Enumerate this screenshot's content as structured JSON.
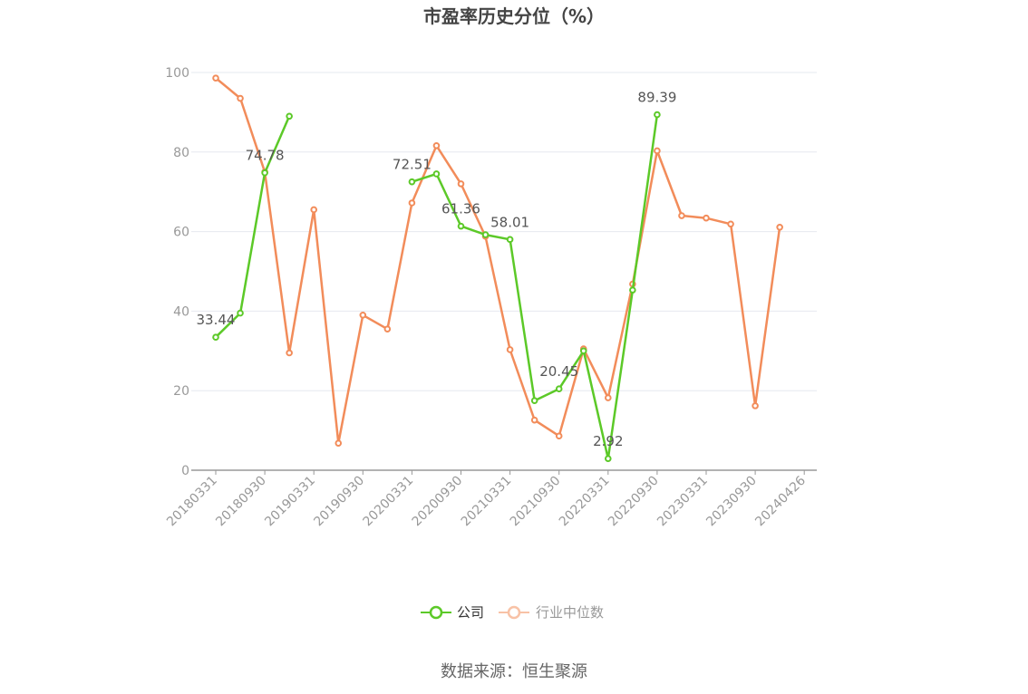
{
  "chart_data": {
    "type": "line",
    "title": "市盈率历史分位（%）",
    "xlabel": "",
    "ylabel": "",
    "ylim": [
      0,
      100
    ],
    "yticks": [
      0,
      20,
      40,
      60,
      80,
      100
    ],
    "x": [
      "20180331",
      "20180630",
      "20180930",
      "20181231",
      "20190331",
      "20190630",
      "20190930",
      "20191231",
      "20200331",
      "20200630",
      "20200930",
      "20201231",
      "20210331",
      "20210630",
      "20210930",
      "20211231",
      "20220331",
      "20220630",
      "20220930",
      "20221231",
      "20230331",
      "20230630",
      "20230930",
      "20231231",
      "20240426"
    ],
    "x_tick_labels": [
      "20180331",
      "20180930",
      "20190331",
      "20190930",
      "20200331",
      "20200930",
      "20210331",
      "20210930",
      "20220331",
      "20220930",
      "20230331",
      "20230930",
      "20240426"
    ],
    "grid": true,
    "legend_position": "bottom",
    "series": [
      {
        "name": "公司",
        "color": "#5cc928",
        "values": [
          33.44,
          39.5,
          74.78,
          89.0,
          null,
          null,
          null,
          null,
          72.51,
          74.5,
          61.36,
          59.2,
          58.01,
          17.5,
          20.45,
          30.0,
          2.92,
          45.3,
          89.39,
          null,
          null,
          null,
          null,
          null,
          null
        ],
        "labels": [
          {
            "index": 0,
            "text": "33.44"
          },
          {
            "index": 2,
            "text": "74.78"
          },
          {
            "index": 8,
            "text": "72.51"
          },
          {
            "index": 10,
            "text": "61.36"
          },
          {
            "index": 12,
            "text": "58.01"
          },
          {
            "index": 14,
            "text": "20.45"
          },
          {
            "index": 16,
            "text": "2.92"
          },
          {
            "index": 18,
            "text": "89.39"
          }
        ]
      },
      {
        "name": "行业中位数",
        "color": "#f28c5a",
        "values": [
          98.6,
          93.5,
          75.0,
          29.5,
          65.5,
          6.8,
          39.0,
          35.5,
          67.2,
          81.6,
          72.0,
          58.8,
          30.3,
          12.6,
          8.6,
          30.5,
          18.2,
          46.8,
          80.3,
          64.0,
          63.4,
          61.9,
          16.2,
          61.1,
          null
        ]
      }
    ]
  },
  "legend": {
    "company_label": "公司",
    "industry_label": "行业中位数"
  },
  "source": "数据来源：恒生聚源"
}
